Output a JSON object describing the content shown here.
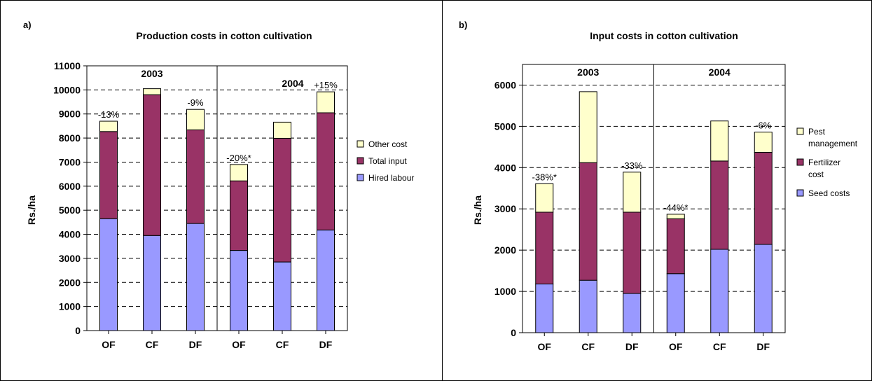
{
  "chart_data": [
    {
      "panel_label": "a)",
      "type": "bar",
      "stacked": true,
      "title": "Production costs in cotton cultivation",
      "xlabel": "",
      "ylabel": "Rs./ha",
      "ylim": [
        0,
        11000
      ],
      "yticks": [
        0,
        1000,
        2000,
        3000,
        4000,
        5000,
        6000,
        7000,
        8000,
        9000,
        10000,
        11000
      ],
      "grid": true,
      "legend_position": "right",
      "categories": [
        "OF",
        "CF",
        "DF",
        "OF",
        "CF",
        "DF"
      ],
      "groups": [
        {
          "label": "2003",
          "start": 0,
          "end": 3
        },
        {
          "label": "2004",
          "start": 3,
          "end": 6
        }
      ],
      "series": [
        {
          "name": "Hired labour",
          "color": "#9999ff",
          "values": [
            4650,
            3950,
            4450,
            3330,
            2850,
            4180
          ]
        },
        {
          "name": "Total input",
          "color": "#993366",
          "values": [
            3620,
            5850,
            3890,
            2890,
            5140,
            4870
          ]
        },
        {
          "name": "Other cost",
          "color": "#ffffcc",
          "values": [
            430,
            250,
            850,
            680,
            670,
            870
          ]
        }
      ],
      "legend_order": [
        "Other cost",
        "Total input",
        "Hired labour"
      ],
      "annotations": [
        "-13%",
        "",
        "-9%",
        "-20%*",
        "",
        "+15%"
      ]
    },
    {
      "panel_label": "b)",
      "type": "bar",
      "stacked": true,
      "title": "Input costs in cotton cultivation",
      "xlabel": "",
      "ylabel": "Rs./ha",
      "ylim": [
        0,
        6500
      ],
      "yticks": [
        0,
        1000,
        2000,
        3000,
        4000,
        5000,
        6000
      ],
      "grid": true,
      "legend_position": "right",
      "categories": [
        "OF",
        "CF",
        "DF",
        "OF",
        "CF",
        "DF"
      ],
      "groups": [
        {
          "label": "2003",
          "start": 0,
          "end": 3
        },
        {
          "label": "2004",
          "start": 3,
          "end": 6
        }
      ],
      "series": [
        {
          "name": "Seed costs",
          "color": "#9999ff",
          "values": [
            1180,
            1270,
            950,
            1430,
            2020,
            2140
          ]
        },
        {
          "name": "Fertilizer cost",
          "label_lines": [
            "Fertilizer",
            "cost"
          ],
          "color": "#993366",
          "values": [
            1740,
            2850,
            1970,
            1330,
            2140,
            2230
          ]
        },
        {
          "name": "Pest management",
          "label_lines": [
            "Pest",
            "management"
          ],
          "color": "#ffffcc",
          "values": [
            690,
            1720,
            970,
            110,
            970,
            490
          ]
        }
      ],
      "legend_order": [
        "Pest management",
        "Fertilizer cost",
        "Seed costs"
      ],
      "annotations": [
        "-38%*",
        "",
        "-33%",
        "-44%*",
        "",
        "-6%"
      ]
    }
  ]
}
